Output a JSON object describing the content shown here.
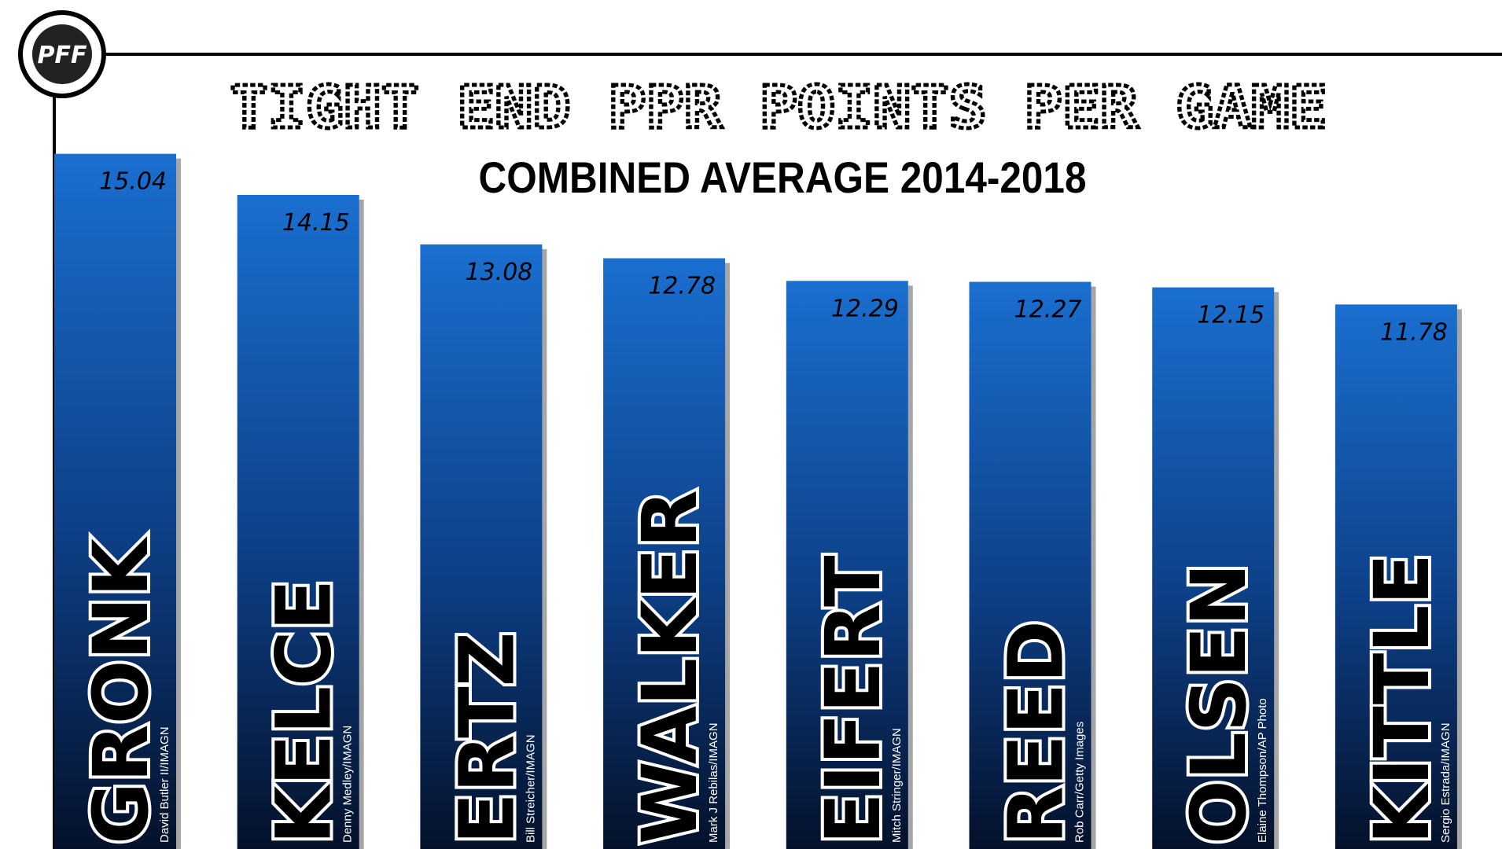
{
  "logo": "PFF",
  "chart_data": {
    "type": "bar",
    "title": "TIGHT END PPR POINTS PER GAME",
    "subtitle": "COMBINED AVERAGE 2014-2018",
    "categories": [
      "GRONK",
      "KELCE",
      "ERTZ",
      "WALKER",
      "EIFERT",
      "REED",
      "OLSEN",
      "KITTLE"
    ],
    "values": [
      15.04,
      14.15,
      13.08,
      12.78,
      12.29,
      12.27,
      12.15,
      11.78
    ],
    "photo_credits": [
      "David Butler II/IMAGN",
      "Denny Medley/IMAGN",
      "Bill Streicher/IMAGN",
      "Mark J Rebilas/IMAGN",
      "Mitch Stringer/IMAGN",
      "Rob Carr/Getty Images",
      "Elaine Thompson/AP Photo",
      "Sergio Estrada/IMAGN"
    ],
    "color": "#1a6fd0"
  }
}
